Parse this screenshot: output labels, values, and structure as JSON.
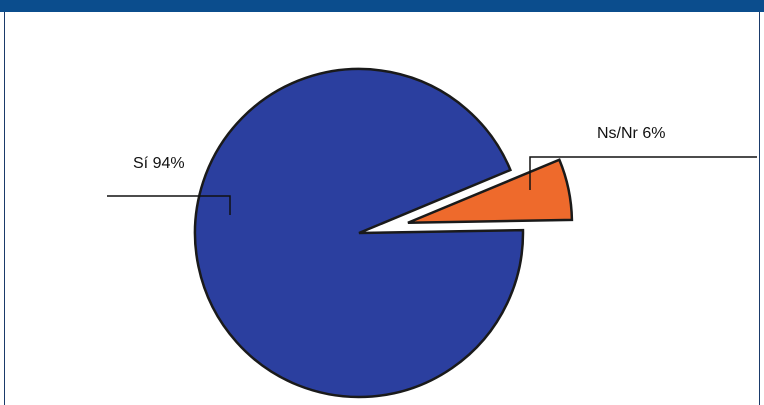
{
  "chart_data": {
    "type": "pie",
    "values": [
      94,
      6
    ],
    "value_labels": [
      "Sí 94%",
      "Ns/Nr 6%"
    ],
    "colors": [
      "#2b3f9f",
      "#ee6a2c"
    ],
    "exploded": [
      false,
      true
    ]
  }
}
